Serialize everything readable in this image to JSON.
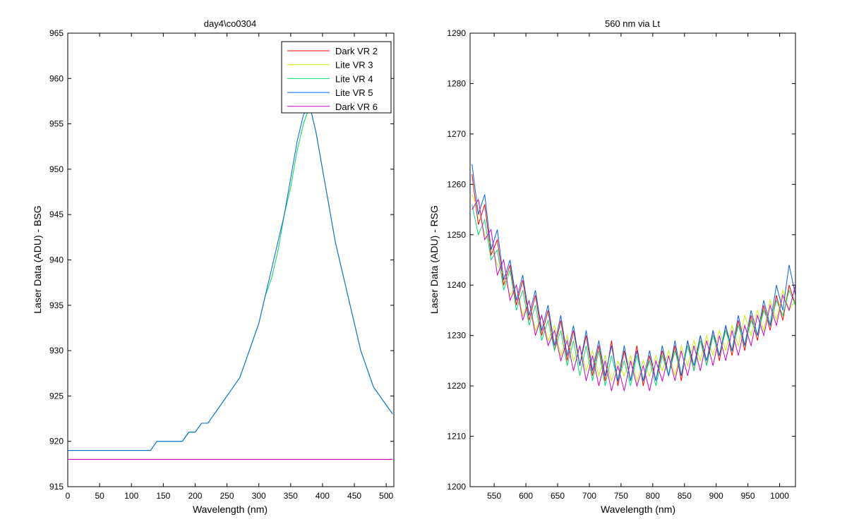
{
  "figure": {
    "background": "#ffffff",
    "series_colors": [
      "#ff0000",
      "#c8f000",
      "#00e070",
      "#0060f0",
      "#cc00cc"
    ]
  },
  "chart_data": [
    {
      "type": "line",
      "title": "day4\\co0304",
      "xlabel": "Wavelength (nm)",
      "ylabel": "Laser Data (ADU) - BSG",
      "xlim": [
        0,
        512
      ],
      "ylim": [
        915,
        965
      ],
      "xticks": [
        "0",
        "50",
        "100",
        "150",
        "200",
        "250",
        "300",
        "350",
        "400",
        "450",
        "500"
      ],
      "yticks": [
        "915",
        "920",
        "925",
        "930",
        "935",
        "940",
        "945",
        "950",
        "955",
        "960",
        "965"
      ],
      "grid": false,
      "legend": {
        "position": "top-right",
        "entries": [
          "Dark VR 2",
          "Lite VR 3",
          "Lite VR 4",
          "Lite VR 5",
          "Dark VR 6"
        ]
      },
      "x": [
        0,
        10,
        20,
        30,
        40,
        50,
        60,
        70,
        80,
        90,
        100,
        110,
        120,
        130,
        140,
        150,
        160,
        170,
        180,
        190,
        200,
        210,
        220,
        230,
        240,
        250,
        260,
        270,
        280,
        290,
        300,
        310,
        320,
        330,
        340,
        350,
        360,
        370,
        380,
        390,
        400,
        410,
        420,
        430,
        440,
        450,
        460,
        470,
        480,
        490,
        500,
        510
      ],
      "series": [
        {
          "name": "Dark VR 2",
          "color": "#ff0000",
          "values": [
            918,
            918,
            918,
            918,
            918,
            918,
            918,
            918,
            918,
            918,
            918,
            918,
            918,
            918,
            918,
            918,
            918,
            918,
            918,
            918,
            918,
            918,
            918,
            918,
            918,
            918,
            918,
            918,
            918,
            918,
            918,
            918,
            918,
            918,
            918,
            918,
            918,
            918,
            918,
            918,
            918,
            918,
            918,
            918,
            918,
            918,
            918,
            918,
            918,
            918,
            918,
            918
          ]
        },
        {
          "name": "Lite VR 3",
          "color": "#c8f000",
          "values": [
            919,
            919,
            919,
            919,
            919,
            919,
            919,
            919,
            919,
            919,
            919,
            919,
            919,
            919,
            920,
            920,
            920,
            920,
            920,
            921,
            921,
            922,
            922,
            923,
            924,
            925,
            926,
            927,
            929,
            931,
            933,
            936,
            938,
            941,
            945,
            948,
            952,
            955,
            957,
            954,
            950,
            946,
            942,
            939,
            936,
            933,
            930,
            928,
            926,
            925,
            924,
            923
          ]
        },
        {
          "name": "Lite VR 4",
          "color": "#00e070",
          "values": [
            919,
            919,
            919,
            919,
            919,
            919,
            919,
            919,
            919,
            919,
            919,
            919,
            919,
            919,
            920,
            920,
            920,
            920,
            920,
            921,
            921,
            922,
            922,
            923,
            924,
            925,
            926,
            927,
            929,
            931,
            933,
            936,
            938,
            941,
            945,
            948,
            952,
            955,
            957,
            954,
            950,
            946,
            942,
            939,
            936,
            933,
            930,
            928,
            926,
            925,
            924,
            923
          ]
        },
        {
          "name": "Lite VR 5",
          "color": "#0060f0",
          "values": [
            919,
            919,
            919,
            919,
            919,
            919,
            919,
            919,
            919,
            919,
            919,
            919,
            919,
            919,
            920,
            920,
            920,
            920,
            920,
            921,
            921,
            922,
            922,
            923,
            924,
            925,
            926,
            927,
            929,
            931,
            933,
            936,
            939,
            942,
            945,
            949,
            953,
            956,
            957,
            954,
            950,
            946,
            942,
            939,
            936,
            933,
            930,
            928,
            926,
            925,
            924,
            923
          ]
        },
        {
          "name": "Dark VR 6",
          "color": "#cc00cc",
          "values": [
            918,
            918,
            918,
            918,
            918,
            918,
            918,
            918,
            918,
            918,
            918,
            918,
            918,
            918,
            918,
            918,
            918,
            918,
            918,
            918,
            918,
            918,
            918,
            918,
            918,
            918,
            918,
            918,
            918,
            918,
            918,
            918,
            918,
            918,
            918,
            918,
            918,
            918,
            918,
            918,
            918,
            918,
            918,
            918,
            918,
            918,
            918,
            918,
            918,
            918,
            918,
            918
          ]
        }
      ]
    },
    {
      "type": "line",
      "title": "560 nm via Lt",
      "xlabel": "Wavelength (nm)",
      "ylabel": "Laser Data (ADU) - RSG",
      "xlim": [
        512,
        1025
      ],
      "ylim": [
        1200,
        1290
      ],
      "xticks": [
        "550",
        "600",
        "650",
        "700",
        "750",
        "800",
        "850",
        "900",
        "950",
        "1000"
      ],
      "yticks": [
        "1200",
        "1210",
        "1220",
        "1230",
        "1240",
        "1250",
        "1260",
        "1270",
        "1280",
        "1290"
      ],
      "grid": false,
      "legend": null,
      "x": [
        515,
        525,
        535,
        545,
        555,
        565,
        575,
        585,
        595,
        605,
        615,
        625,
        635,
        645,
        655,
        665,
        675,
        685,
        695,
        705,
        715,
        725,
        735,
        745,
        755,
        765,
        775,
        785,
        795,
        805,
        815,
        825,
        835,
        845,
        855,
        865,
        875,
        885,
        895,
        905,
        915,
        925,
        935,
        945,
        955,
        965,
        975,
        985,
        995,
        1005,
        1015,
        1025
      ],
      "series": [
        {
          "name": "Dark VR 2",
          "color": "#ff0000",
          "values": [
            1262,
            1252,
            1256,
            1246,
            1249,
            1240,
            1244,
            1236,
            1241,
            1233,
            1238,
            1230,
            1235,
            1227,
            1233,
            1225,
            1231,
            1224,
            1230,
            1222,
            1228,
            1221,
            1229,
            1220,
            1227,
            1221,
            1228,
            1220,
            1226,
            1221,
            1227,
            1222,
            1228,
            1221,
            1229,
            1223,
            1230,
            1224,
            1231,
            1225,
            1232,
            1226,
            1233,
            1227,
            1234,
            1229,
            1236,
            1231,
            1238,
            1233,
            1240,
            1236
          ]
        },
        {
          "name": "Lite VR 3",
          "color": "#c8f000",
          "values": [
            1258,
            1255,
            1250,
            1248,
            1244,
            1242,
            1238,
            1240,
            1234,
            1237,
            1231,
            1234,
            1229,
            1232,
            1226,
            1230,
            1225,
            1228,
            1223,
            1227,
            1222,
            1226,
            1221,
            1225,
            1222,
            1226,
            1221,
            1225,
            1222,
            1226,
            1223,
            1227,
            1222,
            1228,
            1224,
            1229,
            1225,
            1230,
            1226,
            1231,
            1227,
            1232,
            1228,
            1234,
            1230,
            1235,
            1231,
            1237,
            1233,
            1239,
            1235,
            1237
          ]
        },
        {
          "name": "Lite VR 4",
          "color": "#00e070",
          "values": [
            1256,
            1250,
            1253,
            1245,
            1247,
            1239,
            1243,
            1235,
            1239,
            1232,
            1236,
            1229,
            1233,
            1227,
            1231,
            1224,
            1229,
            1222,
            1228,
            1221,
            1227,
            1220,
            1226,
            1221,
            1225,
            1220,
            1226,
            1221,
            1225,
            1220,
            1226,
            1222,
            1227,
            1222,
            1228,
            1223,
            1229,
            1224,
            1230,
            1226,
            1231,
            1227,
            1232,
            1228,
            1233,
            1230,
            1235,
            1232,
            1237,
            1234,
            1239,
            1236
          ]
        },
        {
          "name": "Lite VR 5",
          "color": "#0060f0",
          "values": [
            1264,
            1254,
            1258,
            1247,
            1251,
            1241,
            1245,
            1237,
            1242,
            1234,
            1239,
            1231,
            1236,
            1228,
            1234,
            1226,
            1232,
            1224,
            1231,
            1223,
            1229,
            1222,
            1228,
            1221,
            1228,
            1221,
            1227,
            1221,
            1227,
            1221,
            1228,
            1222,
            1229,
            1222,
            1229,
            1224,
            1230,
            1225,
            1231,
            1226,
            1232,
            1227,
            1234,
            1228,
            1235,
            1230,
            1237,
            1232,
            1240,
            1235,
            1244,
            1238
          ]
        },
        {
          "name": "Dark VR 6",
          "color": "#cc00cc",
          "values": [
            1255,
            1257,
            1249,
            1251,
            1242,
            1245,
            1237,
            1240,
            1233,
            1237,
            1230,
            1234,
            1228,
            1231,
            1225,
            1229,
            1223,
            1228,
            1221,
            1226,
            1220,
            1225,
            1219,
            1224,
            1219,
            1225,
            1220,
            1224,
            1219,
            1225,
            1221,
            1226,
            1221,
            1227,
            1222,
            1228,
            1223,
            1229,
            1224,
            1230,
            1225,
            1231,
            1226,
            1232,
            1228,
            1234,
            1230,
            1236,
            1232,
            1238,
            1235,
            1240
          ]
        }
      ]
    }
  ]
}
